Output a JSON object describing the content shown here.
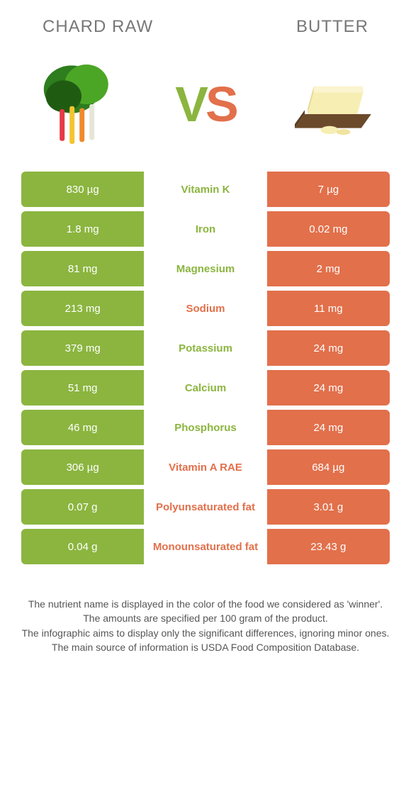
{
  "colors": {
    "green": "#8bb53f",
    "orange": "#e2704b",
    "mid_bg": "#ffffff"
  },
  "header": {
    "left": "chard raw",
    "right": "butter"
  },
  "vs": {
    "v": "V",
    "s": "S"
  },
  "rows": [
    {
      "left": "830 µg",
      "mid": "Vitamin K",
      "right": "7 µg",
      "winner": "left"
    },
    {
      "left": "1.8 mg",
      "mid": "Iron",
      "right": "0.02 mg",
      "winner": "left"
    },
    {
      "left": "81 mg",
      "mid": "Magnesium",
      "right": "2 mg",
      "winner": "left"
    },
    {
      "left": "213 mg",
      "mid": "Sodium",
      "right": "11 mg",
      "winner": "right"
    },
    {
      "left": "379 mg",
      "mid": "Potassium",
      "right": "24 mg",
      "winner": "left"
    },
    {
      "left": "51 mg",
      "mid": "Calcium",
      "right": "24 mg",
      "winner": "left"
    },
    {
      "left": "46 mg",
      "mid": "Phosphorus",
      "right": "24 mg",
      "winner": "left"
    },
    {
      "left": "306 µg",
      "mid": "Vitamin A RAE",
      "right": "684 µg",
      "winner": "right"
    },
    {
      "left": "0.07 g",
      "mid": "Polyunsaturated fat",
      "right": "3.01 g",
      "winner": "right"
    },
    {
      "left": "0.04 g",
      "mid": "Monounsaturated fat",
      "right": "23.43 g",
      "winner": "right"
    }
  ],
  "footer": {
    "line1": "The nutrient name is displayed in the color of the food we considered as 'winner'.",
    "line2": "The amounts are specified per 100 gram of the product.",
    "line3": "The infographic aims to display only the significant differences, ignoring minor ones.",
    "line4": "The main source of information is USDA Food Composition Database."
  }
}
